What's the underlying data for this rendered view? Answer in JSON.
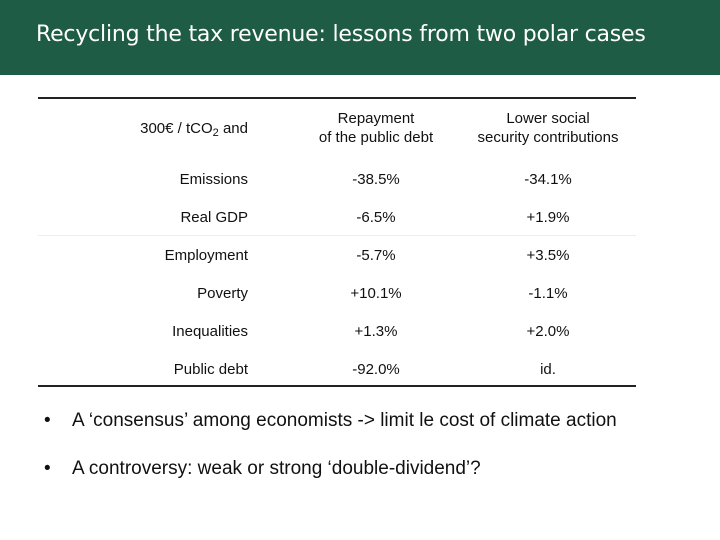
{
  "title": "Recycling the tax revenue: lessons from two polar cases",
  "table": {
    "corner_prefix": "300€ / tCO",
    "corner_sub": "2",
    "corner_suffix": " and",
    "col1_line1": "Repayment",
    "col1_line2": "of the public debt",
    "col2_line1": "Lower social",
    "col2_line2": "security contributions",
    "rows": [
      {
        "label": "Emissions",
        "debt": "-38.5%",
        "social": "-34.1%"
      },
      {
        "label": "Real GDP",
        "debt": "-6.5%",
        "social": "+1.9%"
      },
      {
        "label": "Employment",
        "debt": "-5.7%",
        "social": "+3.5%"
      },
      {
        "label": "Poverty",
        "debt": "+10.1%",
        "social": "-1.1%"
      },
      {
        "label": "Inequalities",
        "debt": "+1.3%",
        "social": "+2.0%"
      },
      {
        "label": "Public debt",
        "debt": "-92.0%",
        "social": "id."
      }
    ]
  },
  "bullets": [
    {
      "marker": "•",
      "text": "A ‘consensus’ among economists -> limit le cost of climate action"
    },
    {
      "marker": "•",
      "text": "A controversy: weak or strong ‘double-dividend’?"
    }
  ]
}
